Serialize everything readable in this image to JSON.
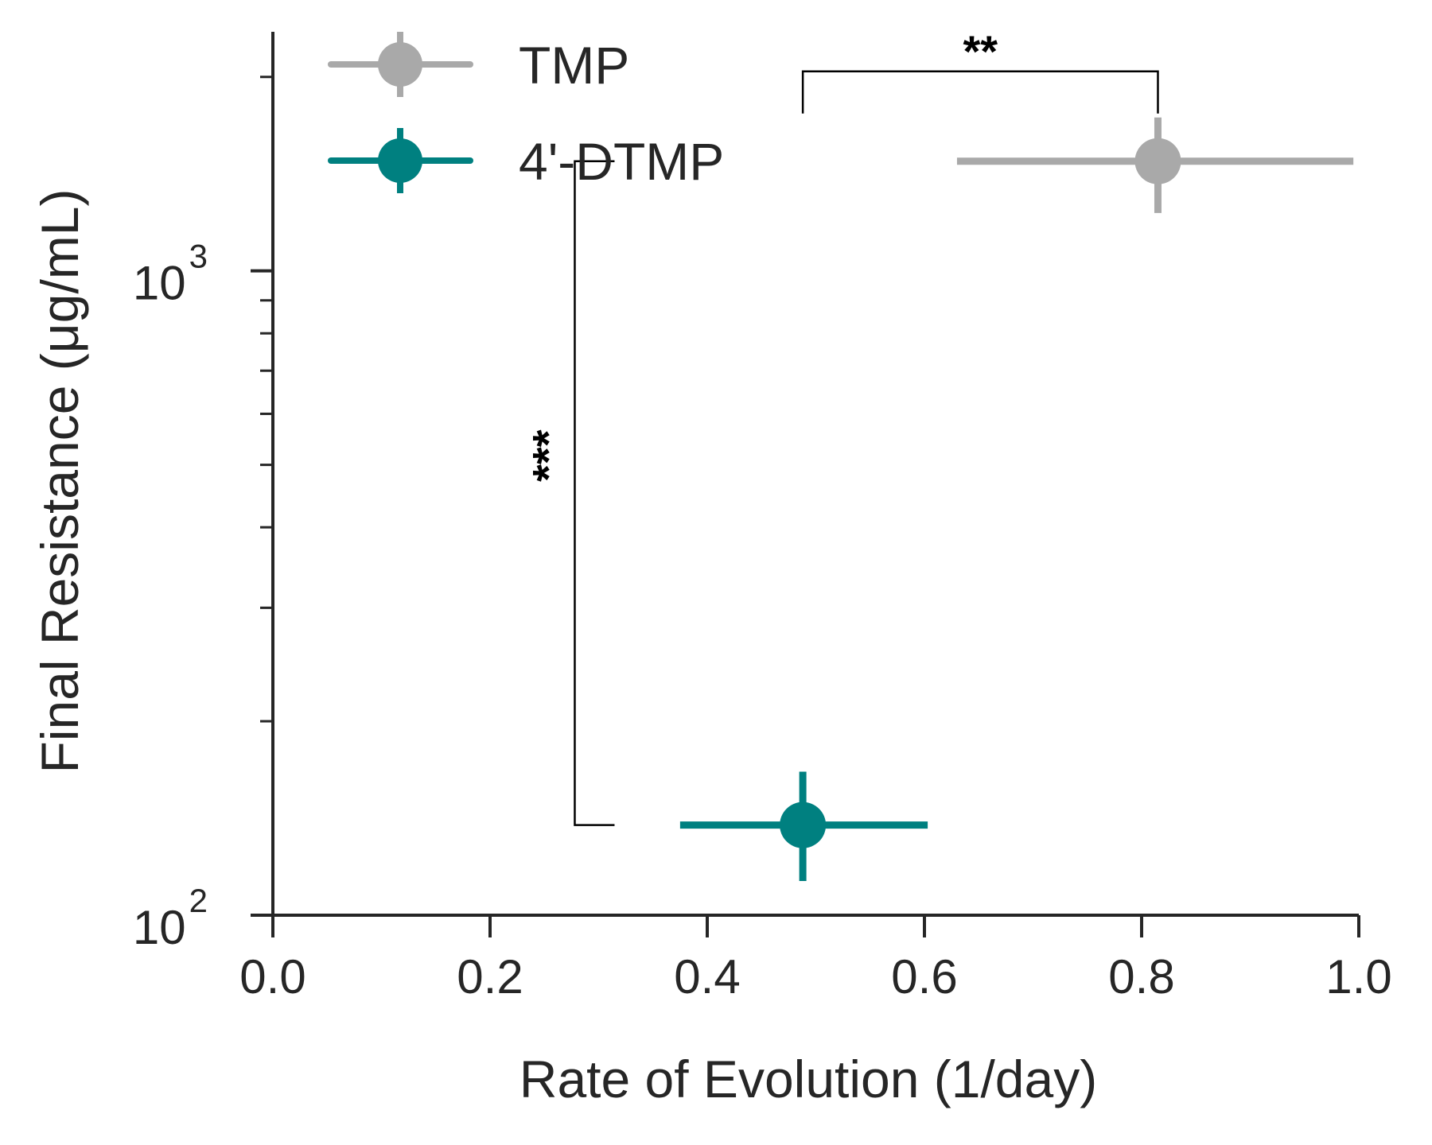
{
  "chart_data": {
    "type": "scatter",
    "xlabel": "Rate of Evolution (1/day)",
    "ylabel": "Final Resistance (μg/mL)",
    "xlim": [
      0.0,
      1.0
    ],
    "ylim": [
      100,
      2350
    ],
    "yscale": "log",
    "x_ticks": [
      "0.0",
      "0.2",
      "0.4",
      "0.6",
      "0.8",
      "1.0"
    ],
    "y_ticks": [
      {
        "value": 100,
        "base": "10",
        "exponent": "2"
      },
      {
        "value": 1000,
        "base": "10",
        "exponent": "3"
      }
    ],
    "grid": false,
    "legend_position": "top-left",
    "series": [
      {
        "name": "TMP",
        "color": "#a9a9a9",
        "x": 0.815,
        "y": 1480,
        "x_err": [
          0.63,
          0.995
        ],
        "y_err": [
          1230,
          1730
        ]
      },
      {
        "name": "4'-DTMP",
        "color": "#008080",
        "x": 0.488,
        "y": 138,
        "x_err": [
          0.375,
          0.603
        ],
        "y_err": [
          113,
          167
        ]
      }
    ],
    "annotations": [
      {
        "label": "**",
        "orientation": "horizontal",
        "between": [
          "4'-DTMP",
          "TMP"
        ],
        "x_from": 0.488,
        "x_to": 0.815,
        "y": 2040
      },
      {
        "label": "***",
        "orientation": "vertical",
        "between": [
          "4'-DTMP",
          "TMP"
        ],
        "x": 0.278,
        "y_from": 138,
        "y_to": 1480
      }
    ]
  }
}
